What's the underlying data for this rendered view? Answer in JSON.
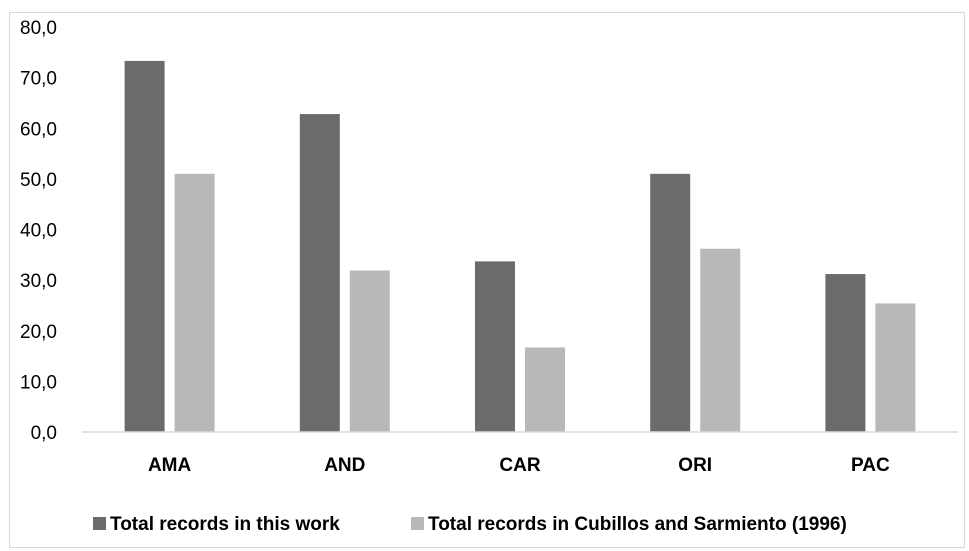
{
  "chart_data": {
    "type": "bar",
    "title": "",
    "xlabel": "",
    "ylabel": "",
    "categories": [
      "AMA",
      "AND",
      "CAR",
      "ORI",
      "PAC"
    ],
    "series": [
      {
        "name": "Total records in this work",
        "values": [
          73.3,
          62.8,
          33.7,
          51.0,
          31.2
        ],
        "color": "#6b6b6b"
      },
      {
        "name": "Total records in Cubillos and Sarmiento (1996)",
        "values": [
          51.0,
          31.9,
          16.7,
          36.2,
          25.4
        ],
        "color": "#b8b8b8"
      }
    ],
    "ylim": [
      0,
      80
    ],
    "y_ticks": [
      "0,0",
      "10,0",
      "20,0",
      "30,0",
      "40,0",
      "50,0",
      "60,0",
      "70,0",
      "80,0"
    ],
    "y_tick_values": [
      0,
      10,
      20,
      30,
      40,
      50,
      60,
      70,
      80
    ],
    "grid": false,
    "legend_position": "bottom"
  }
}
